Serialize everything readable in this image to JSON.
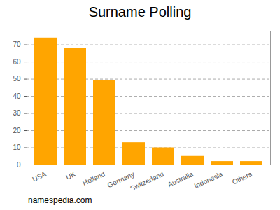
{
  "chart_data": {
    "type": "bar",
    "title": "Surname Polling",
    "caption": "namespedia.com",
    "categories": [
      "USA",
      "UK",
      "Holland",
      "Germany",
      "Switzerland",
      "Australia",
      "Indonesia",
      "Others"
    ],
    "values": [
      74,
      68,
      49,
      13,
      10,
      5,
      2,
      2
    ],
    "color": "#ffa500",
    "ylim": [
      0,
      78
    ],
    "yticks": [
      0,
      10,
      20,
      30,
      40,
      50,
      60,
      70
    ],
    "grid": true
  }
}
